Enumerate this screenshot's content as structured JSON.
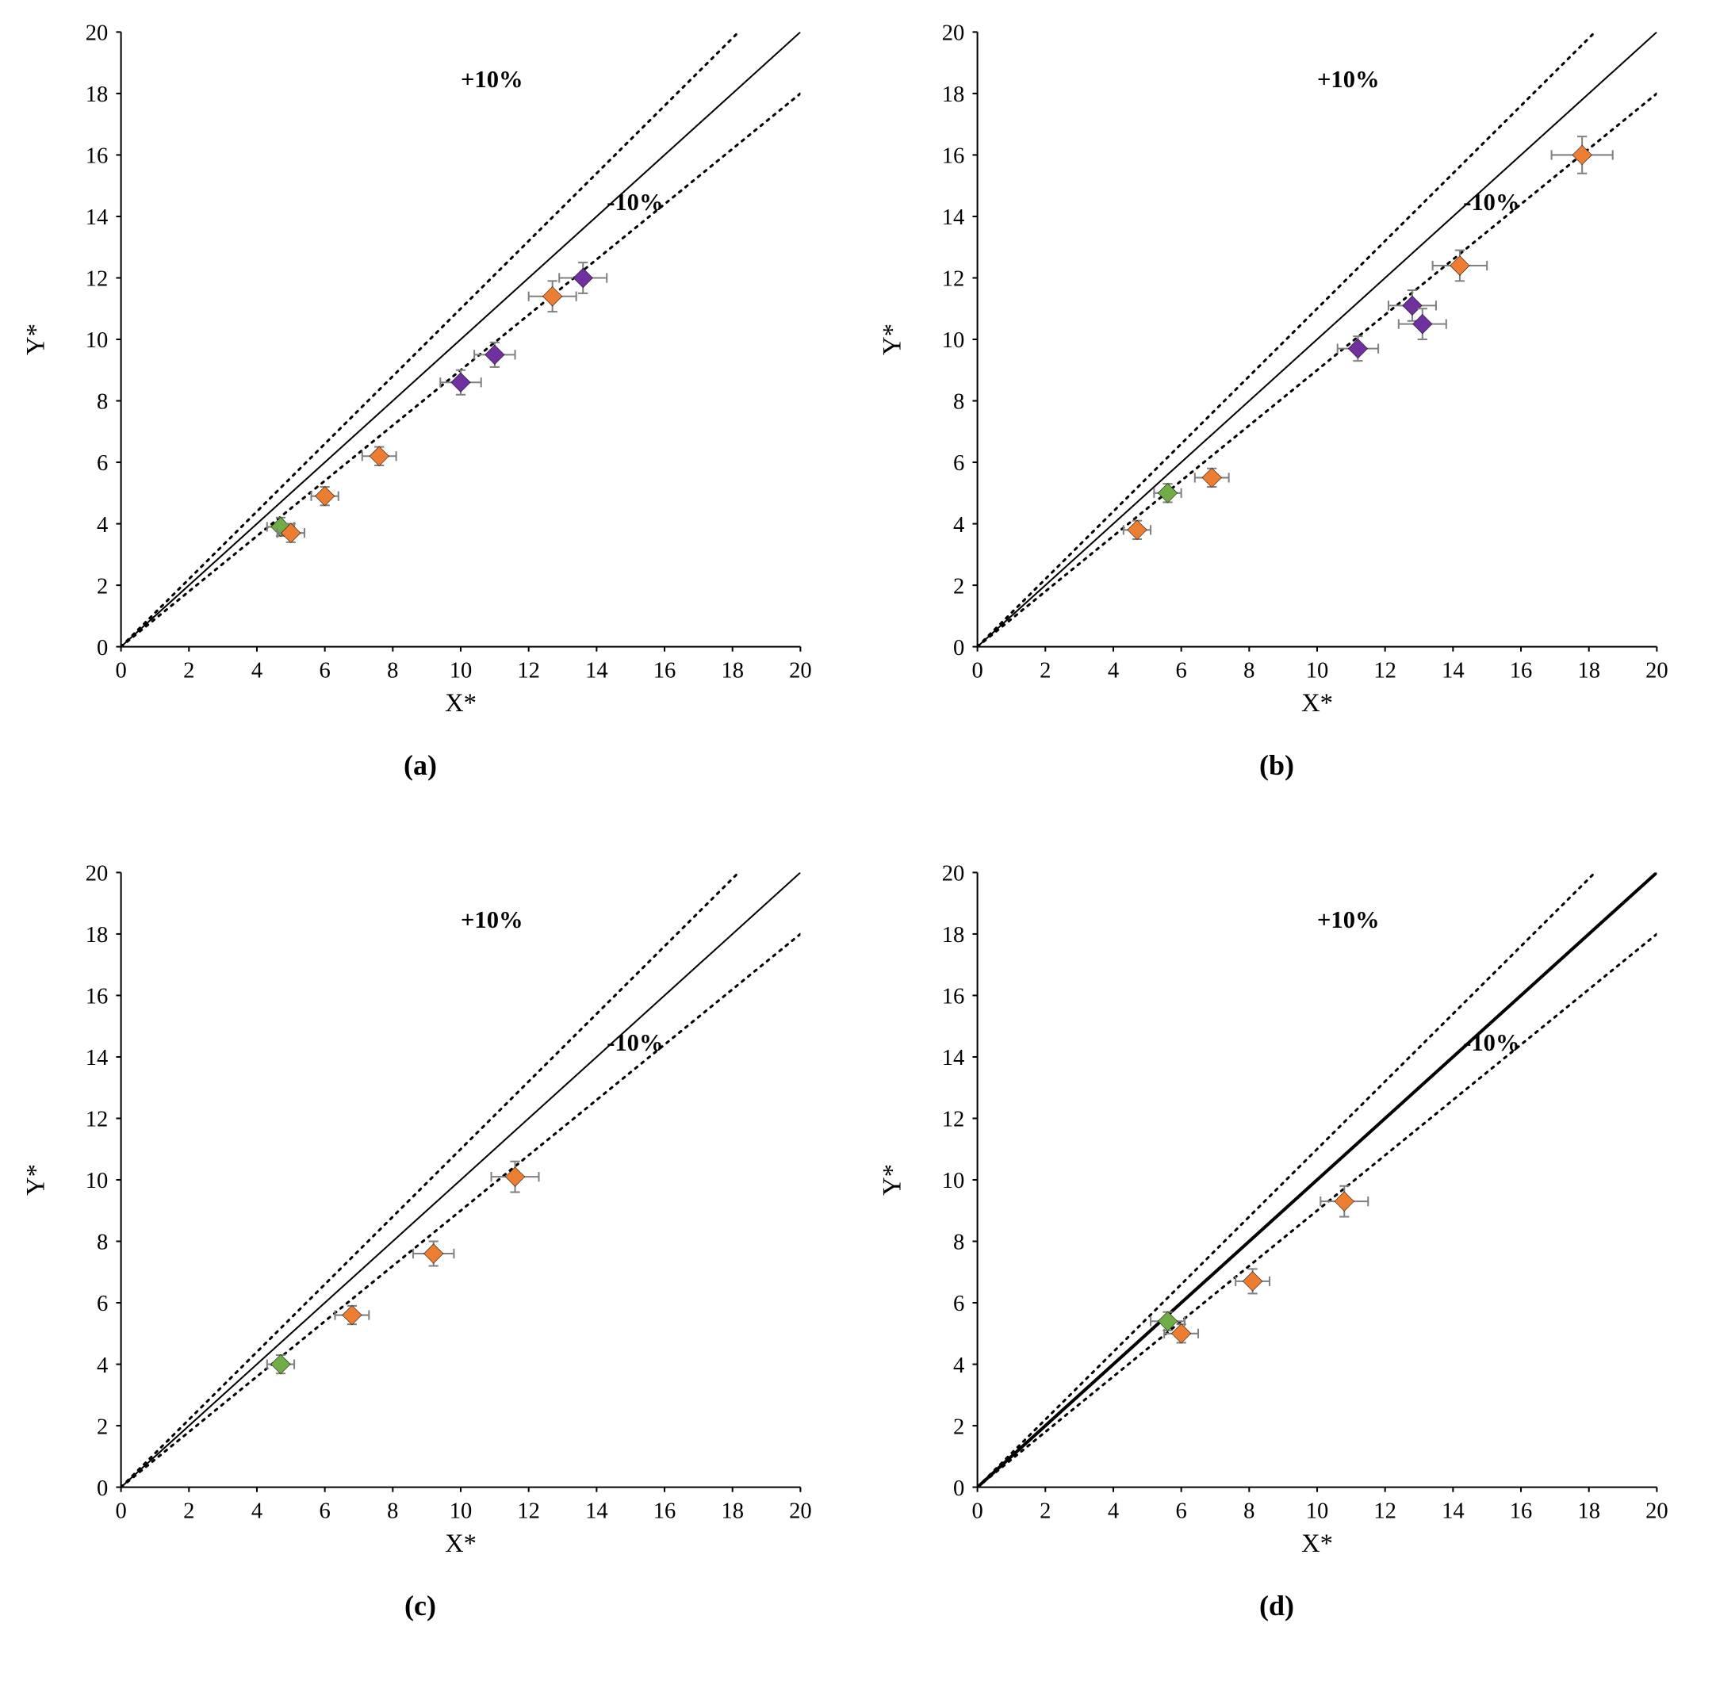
{
  "figure": {
    "background_color": "#ffffff",
    "font_family": "Times New Roman, serif",
    "axis_font_size_pt": 28,
    "label_font_size_pt": 32,
    "annotation_font_size_pt": 30,
    "caption_font_size_pt": 36,
    "axis_color": "#000000",
    "tick_length": 6,
    "error_bar_color": "#808080",
    "error_bar_width": 2,
    "error_cap": 6,
    "marker_size": 12,
    "marker_stroke": "#000000",
    "marker_stroke_width": 0.5,
    "colors": {
      "orange": "#ed7d31",
      "purple": "#7030a0",
      "green": "#70ad47"
    },
    "xlim": [
      0,
      20
    ],
    "ylim": [
      0,
      20
    ],
    "xtick_step": 2,
    "ytick_step": 2,
    "xlabel": "X*",
    "ylabel": "Y*",
    "diagonal": {
      "type": "line",
      "from": [
        0,
        0
      ],
      "to": [
        20,
        20
      ],
      "stroke": "#000000",
      "width": 2,
      "dash": "none"
    },
    "upper_band": {
      "label": "+10%",
      "from": [
        0,
        0
      ],
      "to": [
        18.18,
        20
      ],
      "stroke": "#000000",
      "width": 3,
      "dash": "3,7"
    },
    "lower_band": {
      "label": "-10%",
      "from": [
        0,
        0
      ],
      "to": [
        20,
        18
      ],
      "stroke": "#000000",
      "width": 3,
      "dash": "3,7"
    },
    "annotation_upper_pos": [
      10,
      18.2
    ],
    "annotation_lower_pos": [
      14.3,
      14.2
    ],
    "panels": [
      {
        "key": "a",
        "caption": "(a)",
        "points": [
          {
            "x": 4.7,
            "y": 3.9,
            "ex": 0.4,
            "ey": 0.3,
            "color": "green"
          },
          {
            "x": 5.0,
            "y": 3.7,
            "ex": 0.4,
            "ey": 0.3,
            "color": "orange"
          },
          {
            "x": 6.0,
            "y": 4.9,
            "ex": 0.4,
            "ey": 0.3,
            "color": "orange"
          },
          {
            "x": 7.6,
            "y": 6.2,
            "ex": 0.5,
            "ey": 0.3,
            "color": "orange"
          },
          {
            "x": 10.0,
            "y": 8.6,
            "ex": 0.6,
            "ey": 0.4,
            "color": "purple"
          },
          {
            "x": 11.0,
            "y": 9.5,
            "ex": 0.6,
            "ey": 0.4,
            "color": "purple"
          },
          {
            "x": 12.7,
            "y": 11.4,
            "ex": 0.7,
            "ey": 0.5,
            "color": "orange"
          },
          {
            "x": 13.6,
            "y": 12.0,
            "ex": 0.7,
            "ey": 0.5,
            "color": "purple"
          }
        ]
      },
      {
        "key": "b",
        "caption": "(b)",
        "points": [
          {
            "x": 4.7,
            "y": 3.8,
            "ex": 0.4,
            "ey": 0.3,
            "color": "orange"
          },
          {
            "x": 5.6,
            "y": 5.0,
            "ex": 0.4,
            "ey": 0.3,
            "color": "green"
          },
          {
            "x": 6.9,
            "y": 5.5,
            "ex": 0.5,
            "ey": 0.3,
            "color": "orange"
          },
          {
            "x": 11.2,
            "y": 9.7,
            "ex": 0.6,
            "ey": 0.4,
            "color": "purple"
          },
          {
            "x": 12.8,
            "y": 11.1,
            "ex": 0.7,
            "ey": 0.5,
            "color": "purple"
          },
          {
            "x": 13.1,
            "y": 10.5,
            "ex": 0.7,
            "ey": 0.5,
            "color": "purple"
          },
          {
            "x": 14.2,
            "y": 12.4,
            "ex": 0.8,
            "ey": 0.5,
            "color": "orange"
          },
          {
            "x": 17.8,
            "y": 16.0,
            "ex": 0.9,
            "ey": 0.6,
            "color": "orange"
          }
        ]
      },
      {
        "key": "c",
        "caption": "(c)",
        "points": [
          {
            "x": 4.7,
            "y": 4.0,
            "ex": 0.4,
            "ey": 0.3,
            "color": "green"
          },
          {
            "x": 6.8,
            "y": 5.6,
            "ex": 0.5,
            "ey": 0.3,
            "color": "orange"
          },
          {
            "x": 9.2,
            "y": 7.6,
            "ex": 0.6,
            "ey": 0.4,
            "color": "orange"
          },
          {
            "x": 11.6,
            "y": 10.1,
            "ex": 0.7,
            "ey": 0.5,
            "color": "orange"
          }
        ]
      },
      {
        "key": "d",
        "caption": "(d)",
        "diagonal_width_override": 4,
        "points": [
          {
            "x": 5.6,
            "y": 5.4,
            "ex": 0.5,
            "ey": 0.3,
            "color": "green"
          },
          {
            "x": 6.0,
            "y": 5.0,
            "ex": 0.5,
            "ey": 0.3,
            "color": "orange"
          },
          {
            "x": 8.1,
            "y": 6.7,
            "ex": 0.5,
            "ey": 0.4,
            "color": "orange"
          },
          {
            "x": 10.8,
            "y": 9.3,
            "ex": 0.7,
            "ey": 0.5,
            "color": "orange"
          }
        ]
      }
    ]
  }
}
